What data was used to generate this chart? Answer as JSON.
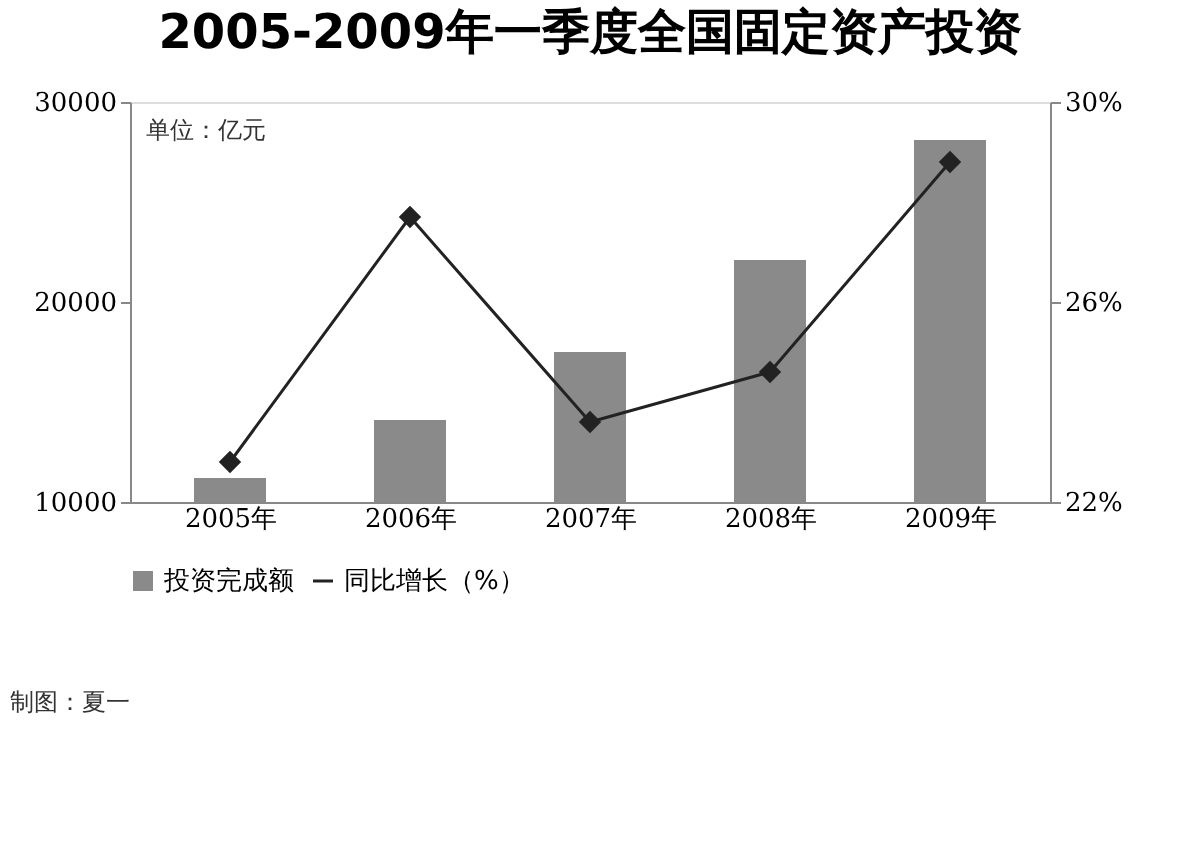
{
  "chart_data": {
    "type": "bar",
    "title": "2005-2009年一季度全国固定资产投资",
    "categories": [
      "2005年",
      "2006年",
      "2007年",
      "2008年",
      "2009年"
    ],
    "series": [
      {
        "name": "投资完成额",
        "color": "#8a8a8a",
        "values": [
          11200,
          14100,
          17500,
          22100,
          28100
        ]
      },
      {
        "name": "同比增长（%）",
        "type": "line",
        "axis": "y2",
        "color": "#222222",
        "marker": "diamond",
        "values": [
          22.8,
          27.7,
          23.6,
          24.6,
          28.8
        ]
      }
    ],
    "ylim": [
      10000,
      30000
    ],
    "yticks": [
      10000,
      20000,
      30000
    ],
    "y2lim": [
      22,
      30
    ],
    "y2ticks": [
      {
        "value": 22,
        "label": "22%"
      },
      {
        "value": 26,
        "label": "26%"
      },
      {
        "value": 30,
        "label": "30%"
      }
    ],
    "grid": false,
    "legend": "bottom",
    "annotations": [
      "单位：亿元",
      "制图：夏一"
    ]
  }
}
